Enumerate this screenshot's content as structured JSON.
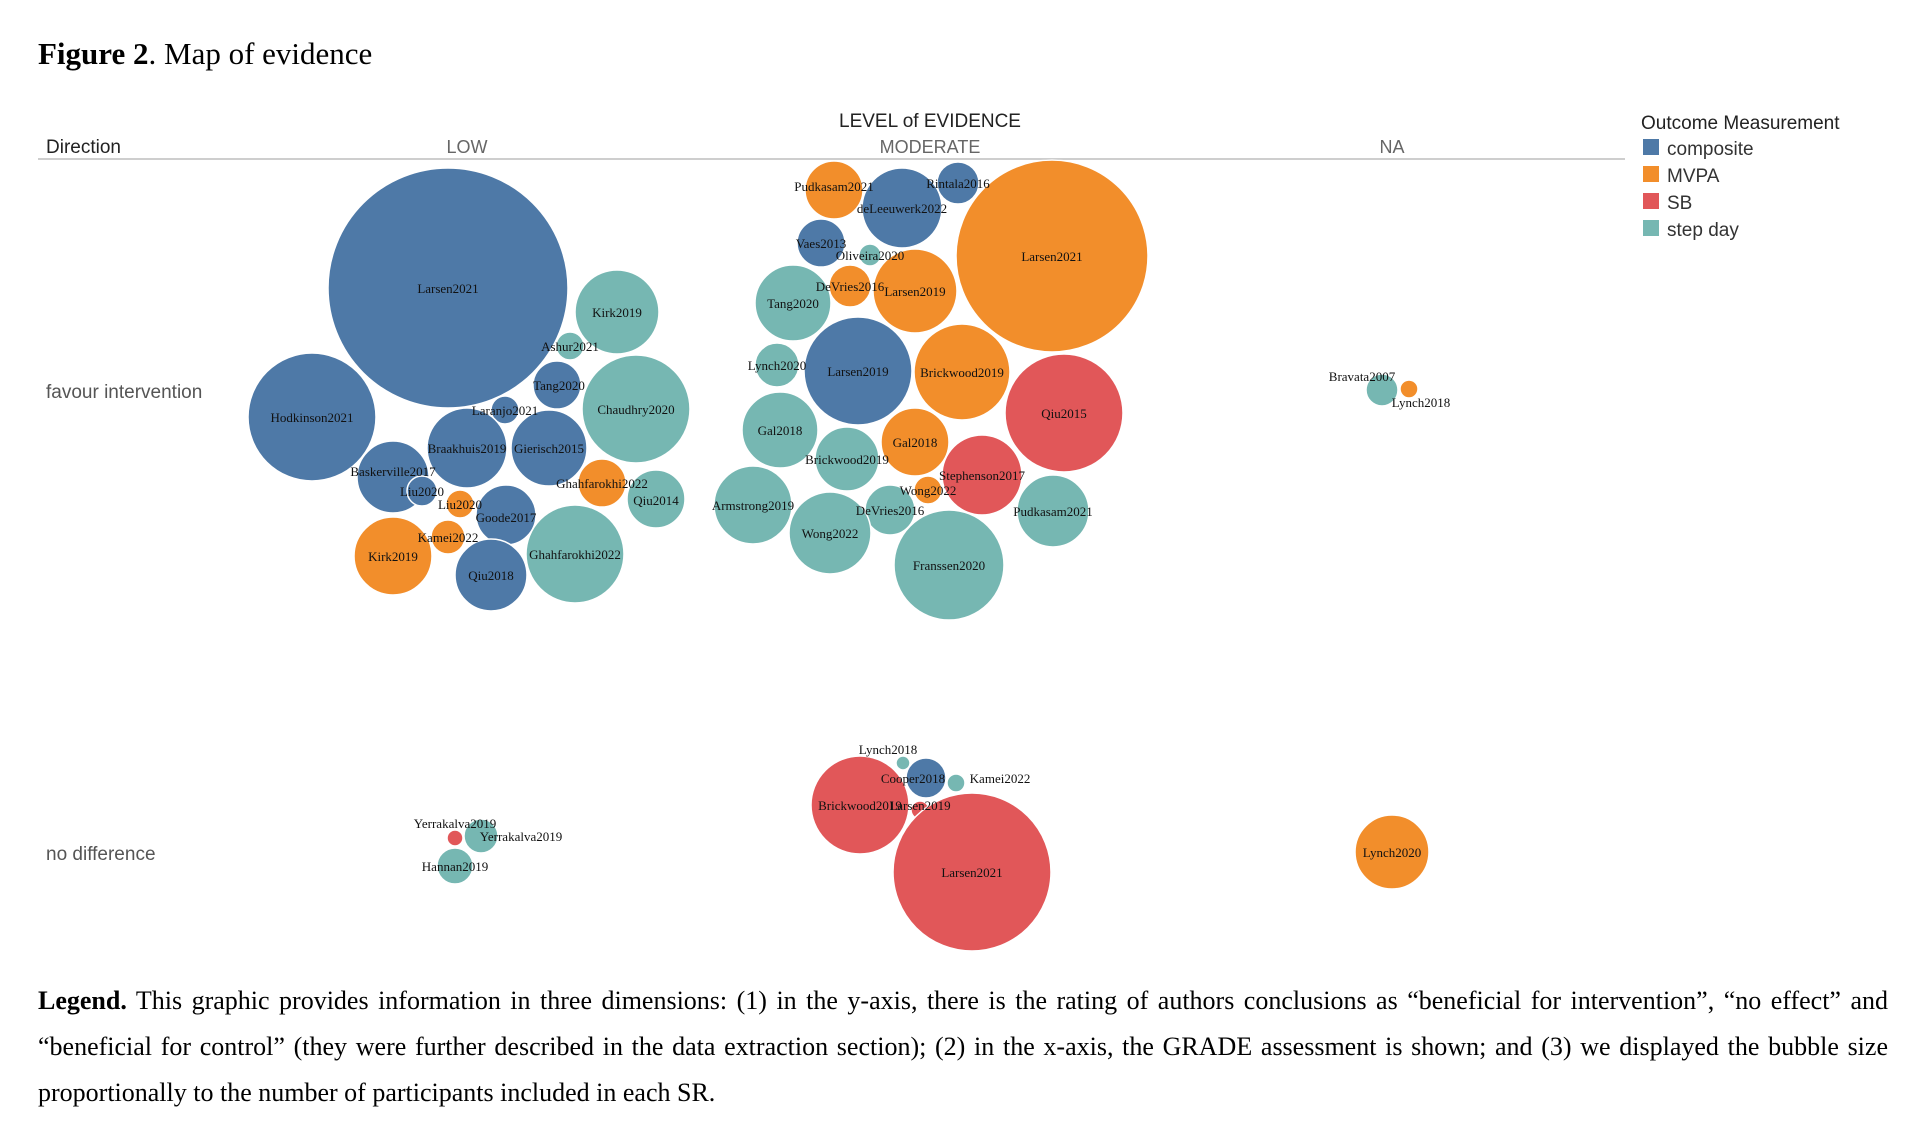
{
  "figure": {
    "label": "Figure 2",
    "title": ". Map of evidence"
  },
  "legend_caption": {
    "label": "Legend.",
    "text": " This graphic provides information in three dimensions: (1) in the y-axis, there is the rating of authors conclusions as “beneficial for intervention”, “no effect” and “beneficial for control” (they were further described in the data extraction section); (2) in the x-axis, the GRADE assessment is shown; and (3) we displayed the bubble size proportionally to the number of participants included in each SR."
  },
  "chart_data": {
    "type": "scatter",
    "title": "LEVEL of EVIDENCE",
    "row_header": "Direction",
    "columns": [
      "LOW",
      "MODERATE",
      "NA"
    ],
    "rows": [
      "favour intervention",
      "no difference"
    ],
    "legend_title": "Outcome Measurement",
    "legend_position": "top-right",
    "grid": false,
    "categories": [
      {
        "name": "composite",
        "color": "#4e79a7"
      },
      {
        "name": "MVPA",
        "color": "#f28e2b"
      },
      {
        "name": "SB",
        "color": "#e15759"
      },
      {
        "name": "step day",
        "color": "#76b7b2"
      }
    ],
    "bubbles": [
      {
        "label": "Larsen2021",
        "col": "LOW",
        "row": "favour intervention",
        "outcome": "composite"
      },
      {
        "label": "Kirk2019",
        "col": "LOW",
        "row": "favour intervention",
        "outcome": "step day"
      },
      {
        "label": "Ashur2021",
        "col": "LOW",
        "row": "favour intervention",
        "outcome": "step day"
      },
      {
        "label": "Tang2020",
        "col": "LOW",
        "row": "favour intervention",
        "outcome": "composite"
      },
      {
        "label": "Chaudhry2020",
        "col": "LOW",
        "row": "favour intervention",
        "outcome": "step day"
      },
      {
        "label": "Hodkinson2021",
        "col": "LOW",
        "row": "favour intervention",
        "outcome": "composite"
      },
      {
        "label": "Laranjo2021",
        "col": "LOW",
        "row": "favour intervention",
        "outcome": "composite"
      },
      {
        "label": "Braakhuis2019",
        "col": "LOW",
        "row": "favour intervention",
        "outcome": "composite"
      },
      {
        "label": "Gierisch2015",
        "col": "LOW",
        "row": "favour intervention",
        "outcome": "composite"
      },
      {
        "label": "Baskerville2017",
        "col": "LOW",
        "row": "favour intervention",
        "outcome": "composite"
      },
      {
        "label": "Ghahfarokhi2022",
        "col": "LOW",
        "row": "favour intervention",
        "outcome": "MVPA"
      },
      {
        "label": "Qiu2014",
        "col": "LOW",
        "row": "favour intervention",
        "outcome": "step day"
      },
      {
        "label": "Liu2020",
        "col": "LOW",
        "row": "favour intervention",
        "outcome": "composite"
      },
      {
        "label": "Liu2020",
        "col": "LOW",
        "row": "favour intervention",
        "outcome": "MVPA"
      },
      {
        "label": "Goode2017",
        "col": "LOW",
        "row": "favour intervention",
        "outcome": "composite"
      },
      {
        "label": "Kamei2022",
        "col": "LOW",
        "row": "favour intervention",
        "outcome": "MVPA"
      },
      {
        "label": "Kirk2019",
        "col": "LOW",
        "row": "favour intervention",
        "outcome": "MVPA"
      },
      {
        "label": "Qiu2018",
        "col": "LOW",
        "row": "favour intervention",
        "outcome": "composite"
      },
      {
        "label": "Ghahfarokhi2022",
        "col": "LOW",
        "row": "favour intervention",
        "outcome": "step day"
      },
      {
        "label": "Pudkasam2021",
        "col": "MODERATE",
        "row": "favour intervention",
        "outcome": "MVPA"
      },
      {
        "label": "Rintala2016",
        "col": "MODERATE",
        "row": "favour intervention",
        "outcome": "composite"
      },
      {
        "label": "deLeeuwerk2022",
        "col": "MODERATE",
        "row": "favour intervention",
        "outcome": "composite"
      },
      {
        "label": "Larsen2021",
        "col": "MODERATE",
        "row": "favour intervention",
        "outcome": "MVPA"
      },
      {
        "label": "Vaes2013",
        "col": "MODERATE",
        "row": "favour intervention",
        "outcome": "composite"
      },
      {
        "label": "Oliveira2020",
        "col": "MODERATE",
        "row": "favour intervention",
        "outcome": "step day"
      },
      {
        "label": "DeVries2016",
        "col": "MODERATE",
        "row": "favour intervention",
        "outcome": "MVPA"
      },
      {
        "label": "Larsen2019",
        "col": "MODERATE",
        "row": "favour intervention",
        "outcome": "MVPA"
      },
      {
        "label": "Tang2020",
        "col": "MODERATE",
        "row": "favour intervention",
        "outcome": "step day"
      },
      {
        "label": "Lynch2020",
        "col": "MODERATE",
        "row": "favour intervention",
        "outcome": "step day"
      },
      {
        "label": "Larsen2019",
        "col": "MODERATE",
        "row": "favour intervention",
        "outcome": "composite"
      },
      {
        "label": "Brickwood2019",
        "col": "MODERATE",
        "row": "favour intervention",
        "outcome": "MVPA"
      },
      {
        "label": "Qiu2015",
        "col": "MODERATE",
        "row": "favour intervention",
        "outcome": "SB"
      },
      {
        "label": "Gal2018",
        "col": "MODERATE",
        "row": "favour intervention",
        "outcome": "step day"
      },
      {
        "label": "Gal2018",
        "col": "MODERATE",
        "row": "favour intervention",
        "outcome": "MVPA"
      },
      {
        "label": "Brickwood2019",
        "col": "MODERATE",
        "row": "favour intervention",
        "outcome": "step day"
      },
      {
        "label": "Stephenson2017",
        "col": "MODERATE",
        "row": "favour intervention",
        "outcome": "SB"
      },
      {
        "label": "Wong2022",
        "col": "MODERATE",
        "row": "favour intervention",
        "outcome": "MVPA"
      },
      {
        "label": "Armstrong2019",
        "col": "MODERATE",
        "row": "favour intervention",
        "outcome": "step day"
      },
      {
        "label": "DeVries2016",
        "col": "MODERATE",
        "row": "favour intervention",
        "outcome": "step day"
      },
      {
        "label": "Pudkasam2021",
        "col": "MODERATE",
        "row": "favour intervention",
        "outcome": "step day"
      },
      {
        "label": "Wong2022",
        "col": "MODERATE",
        "row": "favour intervention",
        "outcome": "step day"
      },
      {
        "label": "Franssen2020",
        "col": "MODERATE",
        "row": "favour intervention",
        "outcome": "step day"
      },
      {
        "label": "Bravata2007",
        "col": "NA",
        "row": "favour intervention",
        "outcome": "step day"
      },
      {
        "label": "Lynch2018",
        "col": "NA",
        "row": "favour intervention",
        "outcome": "MVPA"
      },
      {
        "label": "Yerrakalva2019",
        "col": "LOW",
        "row": "no difference",
        "outcome": "SB"
      },
      {
        "label": "Yerrakalva2019",
        "col": "LOW",
        "row": "no difference",
        "outcome": "step day"
      },
      {
        "label": "Hannan2019",
        "col": "LOW",
        "row": "no difference",
        "outcome": "step day"
      },
      {
        "label": "Lynch2018",
        "col": "MODERATE",
        "row": "no difference",
        "outcome": "step day"
      },
      {
        "label": "Cooper2018",
        "col": "MODERATE",
        "row": "no difference",
        "outcome": "composite"
      },
      {
        "label": "Kamei2022",
        "col": "MODERATE",
        "row": "no difference",
        "outcome": "step day"
      },
      {
        "label": "Brickwood2019",
        "col": "MODERATE",
        "row": "no difference",
        "outcome": "SB"
      },
      {
        "label": "Larsen2019",
        "col": "MODERATE",
        "row": "no difference",
        "outcome": "SB"
      },
      {
        "label": "Larsen2021",
        "col": "MODERATE",
        "row": "no difference",
        "outcome": "SB"
      },
      {
        "label": "Lynch2020",
        "col": "NA",
        "row": "no difference",
        "outcome": "MVPA"
      }
    ]
  }
}
